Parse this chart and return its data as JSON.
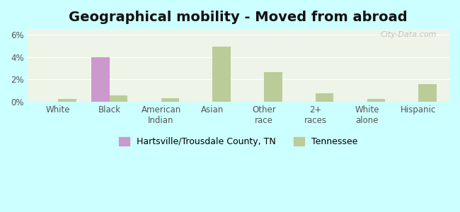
{
  "title": "Geographical mobility - Moved from abroad",
  "categories": [
    "White",
    "Black",
    "American\nIndian",
    "Asian",
    "Other\nrace",
    "2+\nraces",
    "White\nalone",
    "Hispanic"
  ],
  "city_values": [
    0.0,
    4.0,
    0.0,
    0.0,
    0.0,
    0.0,
    0.0,
    0.0
  ],
  "state_values": [
    0.25,
    0.55,
    0.3,
    4.95,
    2.65,
    0.75,
    0.25,
    1.55
  ],
  "city_color": "#cc99cc",
  "state_color": "#bbcc99",
  "background_color": "#ccffff",
  "plot_bg": "#eef4e8",
  "ylim": [
    0,
    6.5
  ],
  "yticks": [
    0,
    2,
    4,
    6
  ],
  "ytick_labels": [
    "0%",
    "2%",
    "4%",
    "6%"
  ],
  "legend_city": "Hartsville/Trousdale County, TN",
  "legend_state": "Tennessee",
  "bar_width": 0.35,
  "title_fontsize": 14,
  "tick_fontsize": 8.5,
  "legend_fontsize": 9
}
